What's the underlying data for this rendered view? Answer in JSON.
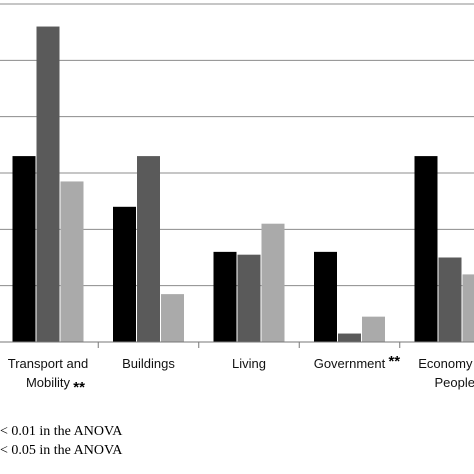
{
  "chart_data": {
    "type": "bar",
    "categories": [
      {
        "lines": [
          "Transport and",
          "Mobility"
        ],
        "sig": "**"
      },
      {
        "lines": [
          "Buildings"
        ],
        "sig": ""
      },
      {
        "lines": [
          "Living"
        ],
        "sig": ""
      },
      {
        "lines": [
          "Government"
        ],
        "sig": "**"
      },
      {
        "lines": [
          "Economy and",
          "Peoples"
        ],
        "sig": ""
      }
    ],
    "series": [
      {
        "values": [
          33,
          24,
          16,
          16,
          33
        ],
        "color": "#000000"
      },
      {
        "values": [
          56,
          33,
          15.5,
          1.5,
          15
        ],
        "color": "#5a5a5a"
      },
      {
        "values": [
          28.5,
          8.5,
          21,
          4.5,
          12
        ],
        "color": "#aaaaaa"
      }
    ],
    "ylim": [
      0,
      60
    ],
    "grid": true,
    "legend": "none"
  },
  "footnotes": [
    "< 0.01 in the ANOVA",
    "< 0.05 in the ANOVA"
  ]
}
